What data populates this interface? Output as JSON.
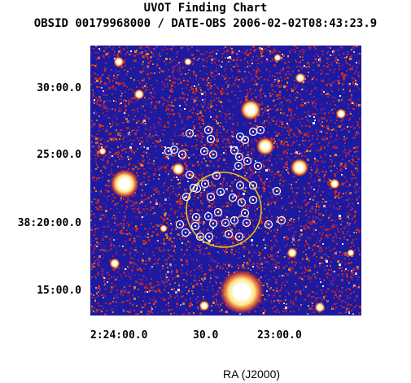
{
  "header": {
    "title": "UVOT Finding Chart",
    "subtitle": "OBSID 00179968000 / DATE-OBS 2006-02-02T08:43:23.9"
  },
  "axes": {
    "dec_ticks": [
      "30:00.0",
      "25:00.0",
      "38:20:00.0",
      "15:00.0"
    ],
    "ra_ticks": [
      "2:24:00.0",
      "30.0",
      "23:00.0"
    ],
    "xlabel": "RA (J2000)"
  },
  "image": {
    "colors": {
      "sky_background": "#1c1aa0",
      "noise_red": "#d32a20",
      "noise_orange": "#f08a22",
      "star_core": "#ffffff",
      "star_halo": "#f7c238",
      "error_circle": "#e8c11a",
      "source_marker": "#ffffff"
    }
  }
}
